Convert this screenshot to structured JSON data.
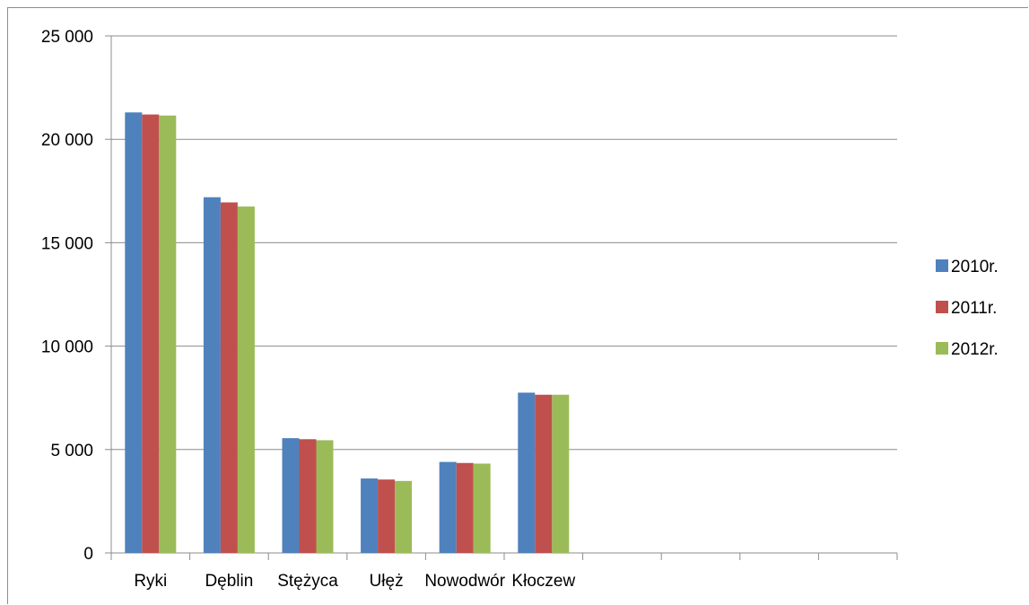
{
  "chart_data": {
    "type": "bar",
    "categories": [
      "Ryki",
      "Dęblin",
      "Stężyca",
      "Ułęż",
      "Nowodwór",
      "Kłoczew",
      "",
      "",
      "",
      ""
    ],
    "series": [
      {
        "name": "2010r.",
        "color": "#4f81bd",
        "values": [
          21300,
          17200,
          5550,
          3600,
          4400,
          7750,
          null,
          null,
          null,
          null
        ]
      },
      {
        "name": "2011r.",
        "color": "#c0504d",
        "values": [
          21200,
          16950,
          5500,
          3550,
          4350,
          7650,
          null,
          null,
          null,
          null
        ]
      },
      {
        "name": "2012r.",
        "color": "#9bbb59",
        "values": [
          21150,
          16750,
          5450,
          3480,
          4320,
          7650,
          null,
          null,
          null,
          null
        ]
      }
    ],
    "yticks": [
      "0",
      "5 000",
      "10 000",
      "15 000",
      "20 000",
      "25 000"
    ],
    "ylim": [
      0,
      25000
    ],
    "grid": true,
    "legend": "right",
    "title": "",
    "xlabel": "",
    "ylabel": ""
  }
}
